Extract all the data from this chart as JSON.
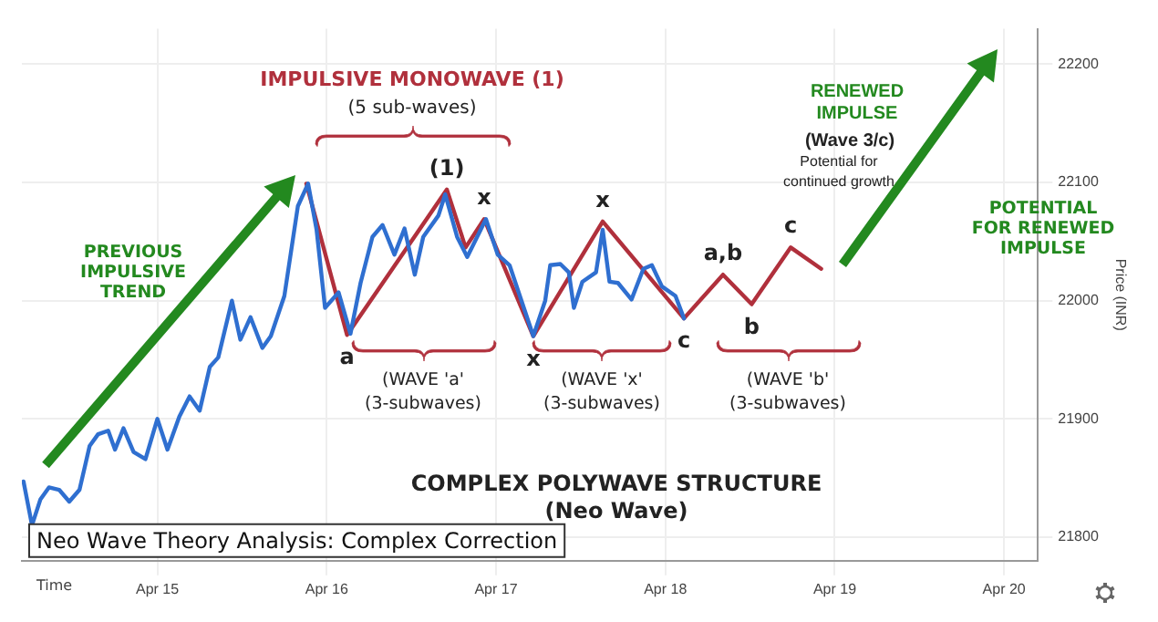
{
  "chart_data": {
    "type": "line",
    "title": "Neo Wave Theory Analysis: Complex Correction",
    "xlabel": "Time",
    "ylabel": "Price (INR)",
    "xlim": [
      "--04-14T04:48",
      "--04-20T04:48"
    ],
    "xticks": [
      {
        "value": "--04-15",
        "label": "Apr 15"
      },
      {
        "value": "--04-16",
        "label": "Apr 16"
      },
      {
        "value": "--04-17",
        "label": "Apr 17"
      },
      {
        "value": "--04-18",
        "label": "Apr 18"
      },
      {
        "value": "--04-19",
        "label": "Apr 19"
      },
      {
        "value": "--04-20",
        "label": "Apr 20"
      }
    ],
    "ylim": [
      21780,
      22230
    ],
    "yticks": [
      21800,
      21900,
      22000,
      22100,
      22200
    ],
    "grid": true,
    "legend": false,
    "marker": "none",
    "line_style": "solid",
    "series": [
      {
        "color": "#2f6fd0",
        "x": [
          "--04-14T05:02",
          "--04-14T06:14",
          "--04-14T07:26",
          "--04-14T08:38",
          "--04-14T10:05",
          "--04-14T11:31",
          "--04-14T12:58",
          "--04-14T14:24",
          "--04-14T15:36",
          "--04-14T17:02",
          "--04-14T18:00",
          "--04-14T19:12",
          "--04-14T20:38",
          "--04-14T22:19",
          "--04-15T00:00",
          "--04-15T01:26",
          "--04-15T03:07",
          "--04-15T04:34",
          "--04-15T06:00",
          "--04-15T07:26",
          "--04-15T08:38",
          "--04-15T10:34",
          "--04-15T11:46",
          "--04-15T13:12",
          "--04-15T14:53",
          "--04-15T16:05",
          "--04-15T18:00",
          "--04-15T19:55",
          "--04-15T21:22",
          "--04-15T22:34",
          "--04-15T23:46",
          "--04-16T01:41",
          "--04-16T03:22",
          "--04-16T04:48",
          "--04-16T06:29",
          "--04-16T07:55",
          "--04-16T09:36",
          "--04-16T11:02",
          "--04-16T12:29",
          "--04-16T13:41",
          "--04-16T15:50",
          "--04-16T16:48",
          "--04-16T18:29",
          "--04-16T19:55",
          "--04-16T22:34",
          "--04-17T00:14",
          "--04-17T01:55",
          "--04-17T05:17",
          "--04-17T06:58",
          "--04-17T07:41",
          "--04-17T09:07",
          "--04-17T10:19",
          "--04-17T11:02",
          "--04-17T12:14",
          "--04-17T14:10",
          "--04-17T15:07",
          "--04-17T16:05",
          "--04-17T17:17",
          "--04-17T19:12",
          "--04-17T20:53",
          "--04-17T22:05",
          "--04-17T23:31",
          "--04-18T01:26",
          "--04-18T02:38"
        ],
        "values": [
          21847,
          21810,
          21832,
          21842,
          21840,
          21830,
          21840,
          21877,
          21887,
          21890,
          21874,
          21892,
          21872,
          21866,
          21900,
          21874,
          21902,
          21919,
          21907,
          21944,
          21952,
          22000,
          21967,
          21986,
          21960,
          21970,
          22004,
          22080,
          22099,
          22060,
          21994,
          22007,
          21972,
          22015,
          22054,
          22064,
          22039,
          22061,
          22022,
          22054,
          22072,
          22090,
          22054,
          22037,
          22069,
          22039,
          22030,
          21970,
          22000,
          22030,
          22031,
          22024,
          21994,
          22016,
          22024,
          22060,
          22016,
          22015,
          22001,
          22027,
          22030,
          22012,
          22004,
          21985
        ]
      },
      {
        "color": "#b0303c",
        "x": [
          "--04-15T21:07",
          "--04-16T02:53",
          "--04-16T17:02",
          "--04-16T19:41",
          "--04-16T22:19",
          "--04-17T05:17",
          "--04-17T15:07",
          "--04-18T02:38",
          "--04-18T08:10",
          "--04-18T12:14",
          "--04-18T17:46",
          "--04-18T22:05"
        ],
        "values": [
          22099,
          21971,
          22094,
          22045,
          22069,
          21970,
          22067,
          21985,
          22022,
          21997,
          22045,
          22027
        ]
      }
    ],
    "annotations": [
      "IMPULSIVE MONOWAVE (1)",
      "(5 sub-waves)",
      "PREVIOUS\nIMPULSIVE\nTREND",
      "(WAVE 'a'\n(3-subwaves)",
      "(WAVE 'x'\n(3-subwaves)",
      "(WAVE 'b'\n(3-subwaves)",
      "COMPLEX POLYWAVE STRUCTURE\n(Neo Wave)",
      "RENEWED\nIMPULSE",
      "(Wave 3/c)",
      "Potential for\ncontinued growth",
      "POTENTIAL\nFOR RENEWED\nIMPULSE",
      {
        "text": "a",
        "x": "--04-16T02:53",
        "y": 21971
      },
      {
        "text": "(1)",
        "x": "--04-16T17:02",
        "y": 22094
      },
      {
        "text": "x",
        "x": "--04-16T22:19",
        "y": 22069
      },
      {
        "text": "x",
        "x": "--04-17T05:17",
        "y": 21970
      },
      {
        "text": "x",
        "x": "--04-17T15:07",
        "y": 22067
      },
      {
        "text": "c",
        "x": "--04-18T02:38",
        "y": 21985
      },
      {
        "text": "a,b",
        "x": "--04-18T08:10",
        "y": 22022
      },
      {
        "text": "b",
        "x": "--04-18T12:14",
        "y": 21997
      },
      {
        "text": "c",
        "x": "--04-18T17:46",
        "y": 22045
      }
    ]
  }
}
